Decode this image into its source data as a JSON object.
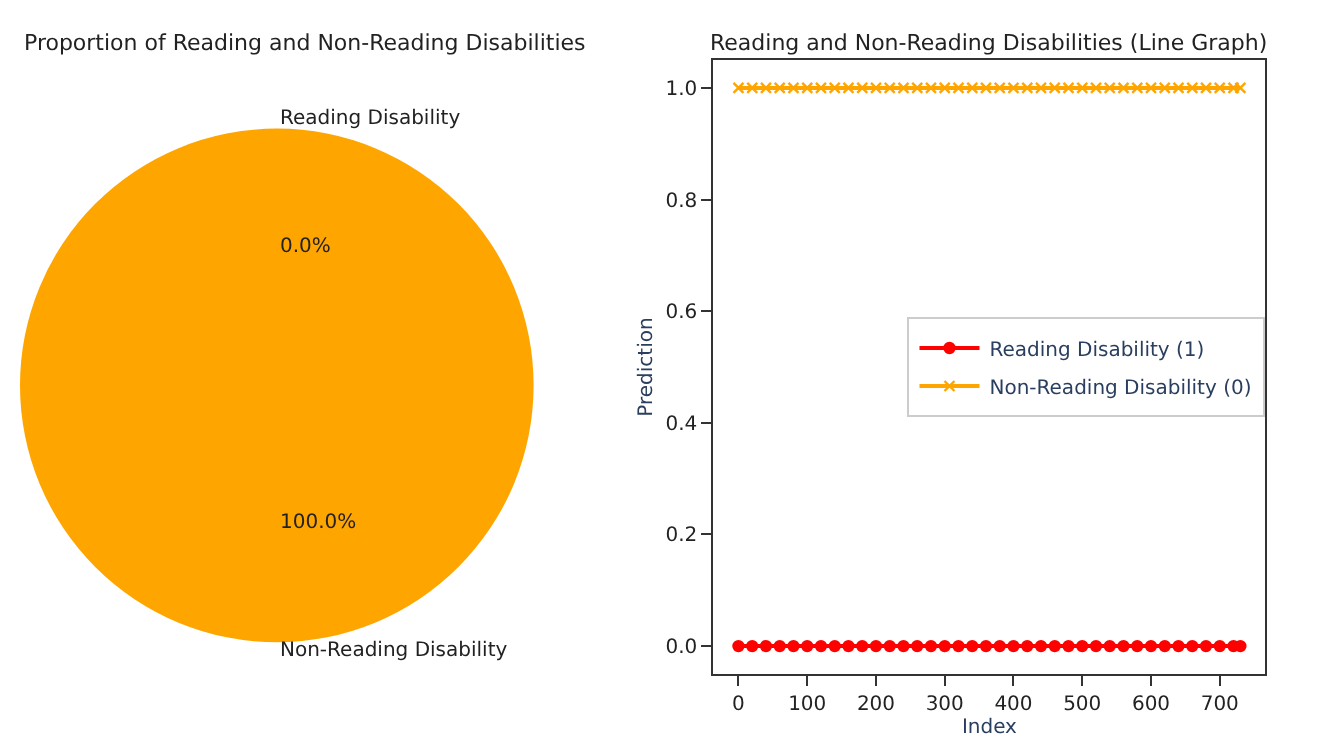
{
  "chart_data": [
    {
      "type": "pie",
      "title": "Proportion of Reading and Non-Reading Disabilities",
      "categories": [
        "Reading Disability",
        "Non-Reading Disability"
      ],
      "values": [
        0,
        100
      ],
      "colors": [
        "#ff0000",
        "#ffa500"
      ],
      "value_labels": [
        "0.0%",
        "100.0%"
      ]
    },
    {
      "type": "line",
      "title": "Reading and Non-Reading Disabilities (Line Graph)",
      "xlabel": "Index",
      "ylabel": "Prediction",
      "xlim": [
        -36.5,
        766.5
      ],
      "xticks": [
        0,
        100,
        200,
        300,
        400,
        500,
        600,
        700
      ],
      "ylim": [
        -0.05,
        1.05
      ],
      "yticks": [
        {
          "value": 0,
          "label": "0.0"
        },
        {
          "value": 0.2,
          "label": "0.2"
        },
        {
          "value": 0.4,
          "label": "0.4"
        },
        {
          "value": 0.6,
          "label": "0.6"
        },
        {
          "value": 0.8,
          "label": "0.8"
        },
        {
          "value": 1,
          "label": "1.0"
        }
      ],
      "legend": "right",
      "grid": false,
      "x": [
        0,
        20,
        40,
        60,
        80,
        100,
        120,
        140,
        160,
        180,
        200,
        220,
        240,
        260,
        280,
        300,
        320,
        340,
        360,
        380,
        400,
        420,
        440,
        460,
        480,
        500,
        520,
        540,
        560,
        580,
        600,
        620,
        640,
        660,
        680,
        700,
        720,
        730
      ],
      "series": [
        {
          "name": "Reading Disability (1)",
          "color": "#ff0000",
          "marker": "circle",
          "values": [
            0,
            0,
            0,
            0,
            0,
            0,
            0,
            0,
            0,
            0,
            0,
            0,
            0,
            0,
            0,
            0,
            0,
            0,
            0,
            0,
            0,
            0,
            0,
            0,
            0,
            0,
            0,
            0,
            0,
            0,
            0,
            0,
            0,
            0,
            0,
            0,
            0,
            0
          ]
        },
        {
          "name": "Non-Reading Disability (0)",
          "color": "#ffa500",
          "marker": "cross",
          "values": [
            1,
            1,
            1,
            1,
            1,
            1,
            1,
            1,
            1,
            1,
            1,
            1,
            1,
            1,
            1,
            1,
            1,
            1,
            1,
            1,
            1,
            1,
            1,
            1,
            1,
            1,
            1,
            1,
            1,
            1,
            1,
            1,
            1,
            1,
            1,
            1,
            1,
            1
          ]
        }
      ]
    }
  ]
}
